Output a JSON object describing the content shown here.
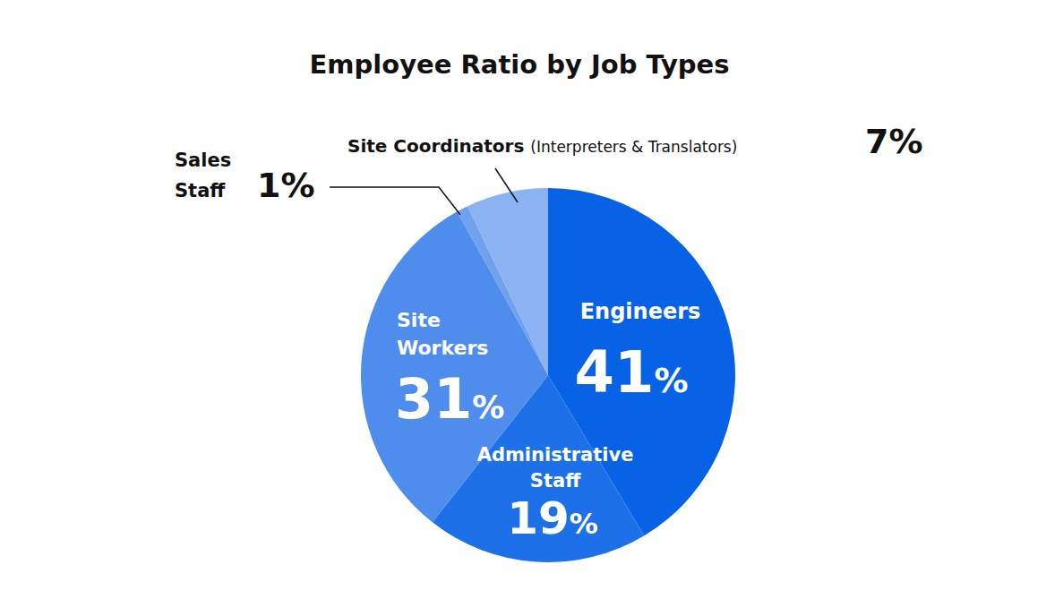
{
  "chart_data": {
    "type": "pie",
    "title": "Employee Ratio by Job Types",
    "categories": [
      "Engineers",
      "Administrative Staff",
      "Site Workers",
      "Sales Staff",
      "Site Coordinators (Interpreters & Translators)"
    ],
    "values": [
      41,
      19,
      31,
      1,
      7
    ],
    "value_labels": [
      "41%",
      "19%",
      "31%",
      "1%",
      "7%"
    ],
    "colors": [
      "#0762e6",
      "#1d70e8",
      "#4f8ded",
      "#6fa1ef",
      "#8ab3f4"
    ],
    "data_labels": true
  }
}
